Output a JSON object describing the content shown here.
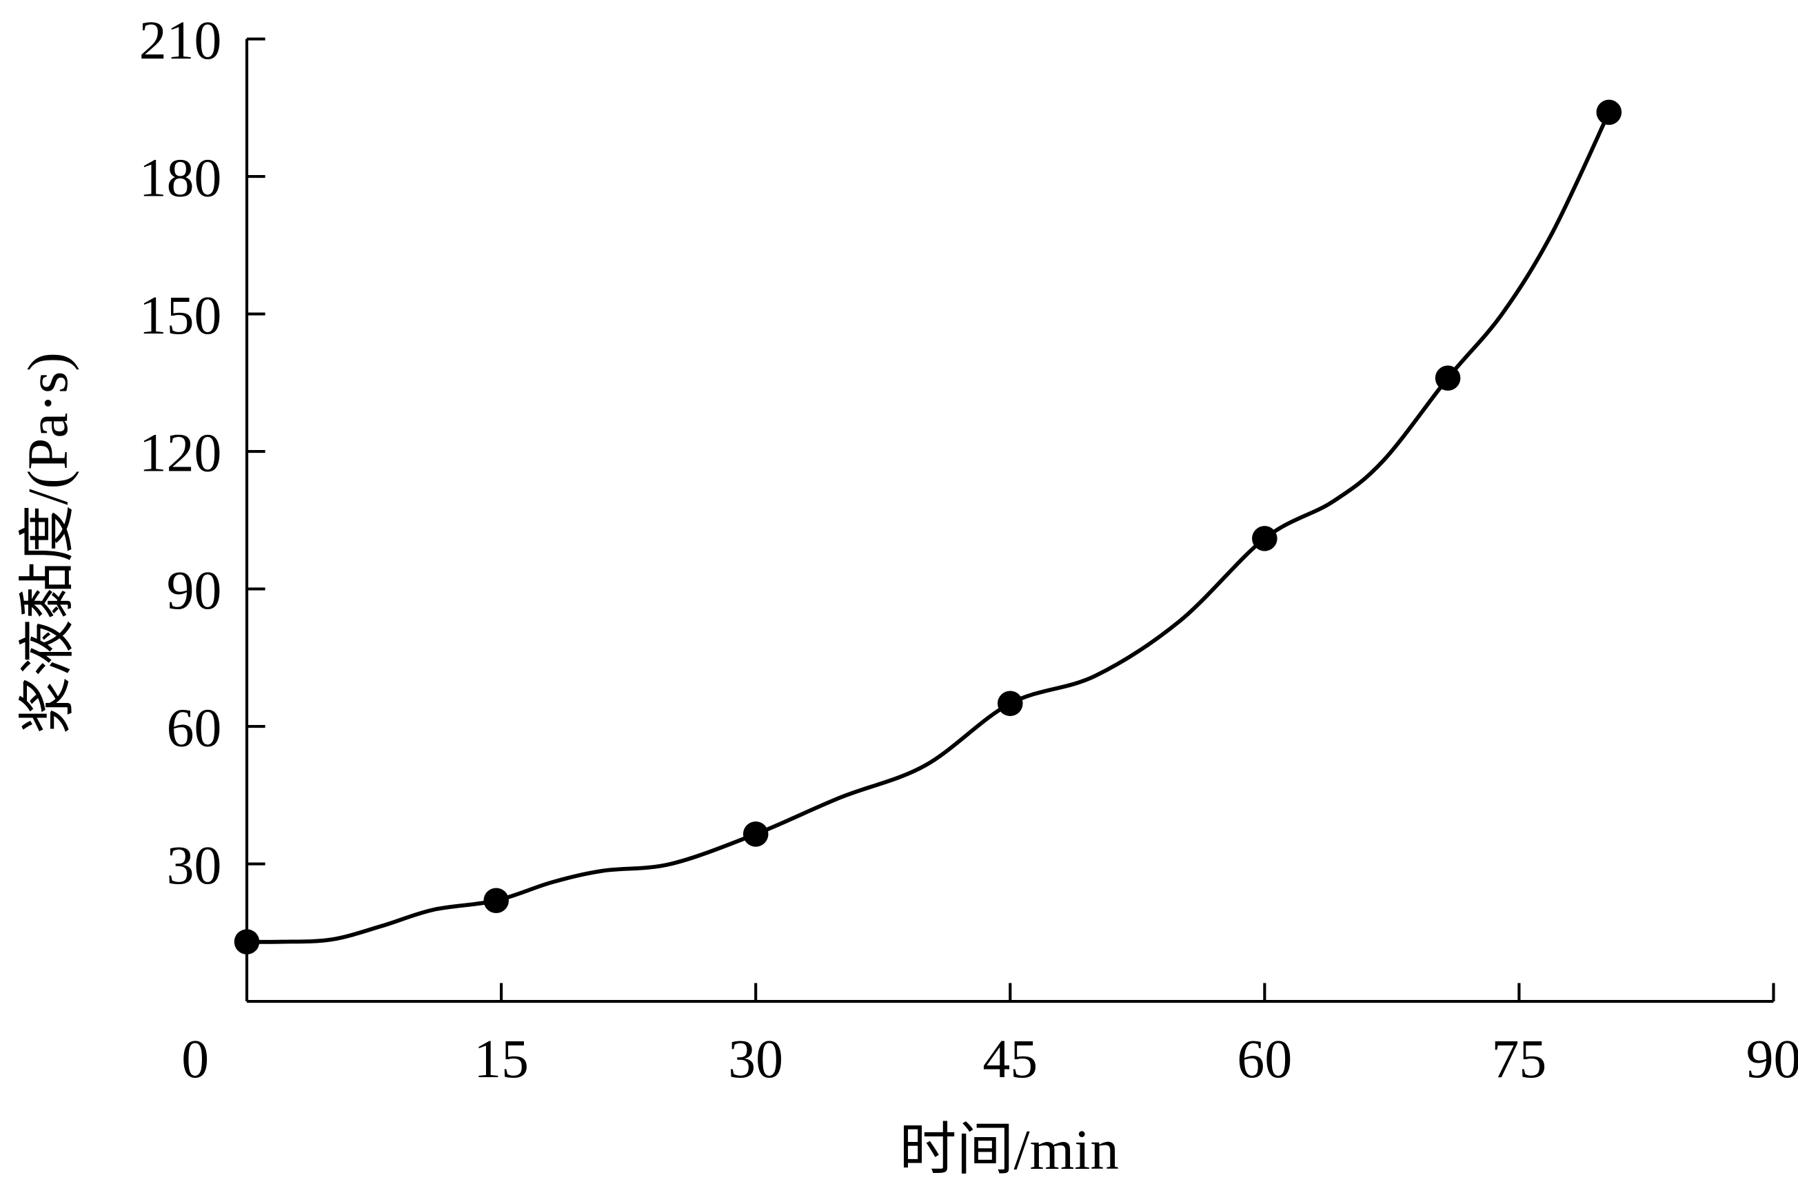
{
  "chart_data": {
    "type": "line",
    "title": "",
    "xlabel": "时间/min",
    "ylabel": "浆液黏度/(Pa·s)",
    "xlim": [
      0,
      90
    ],
    "ylim": [
      0,
      210
    ],
    "xticks": [
      0,
      15,
      30,
      45,
      60,
      75,
      90
    ],
    "yticks": [
      30,
      60,
      90,
      120,
      150,
      180,
      210
    ],
    "xtick_labels": [
      "0",
      "15",
      "30",
      "45",
      "60",
      "75",
      "90"
    ],
    "ytick_labels": [
      "30",
      "60",
      "90",
      "120",
      "150",
      "180",
      "210"
    ],
    "grid": false,
    "legend": "none",
    "series": [
      {
        "name": "viscosity",
        "color": "#000000",
        "points": [
          [
            0,
            13
          ],
          [
            14.7,
            22
          ],
          [
            30,
            36.5
          ],
          [
            45,
            65
          ],
          [
            60,
            101
          ],
          [
            70.8,
            136
          ],
          [
            80.3,
            194
          ]
        ],
        "curve": [
          [
            0,
            13
          ],
          [
            2,
            13
          ],
          [
            5,
            13.5
          ],
          [
            8,
            16.5
          ],
          [
            11,
            20
          ],
          [
            14.7,
            22
          ],
          [
            18,
            26
          ],
          [
            21,
            28.5
          ],
          [
            25,
            30
          ],
          [
            30,
            36.5
          ],
          [
            35,
            44.5
          ],
          [
            40,
            51.5
          ],
          [
            45,
            65
          ],
          [
            50,
            71
          ],
          [
            55,
            83
          ],
          [
            60,
            101
          ],
          [
            64,
            109
          ],
          [
            67,
            118
          ],
          [
            70.8,
            136
          ],
          [
            74,
            150
          ],
          [
            77,
            168
          ],
          [
            80.3,
            194
          ]
        ]
      }
    ]
  }
}
